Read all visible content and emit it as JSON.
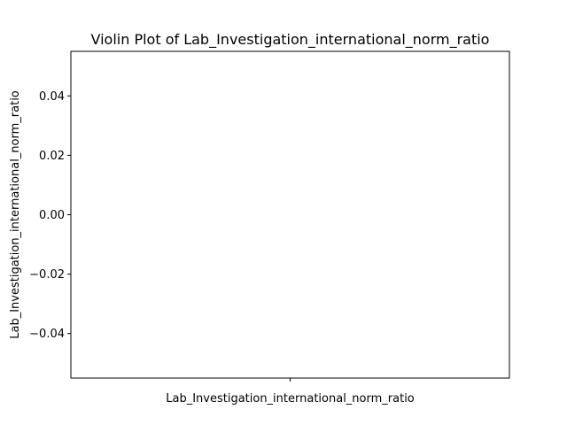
{
  "chart_data": {
    "type": "violin",
    "title": "Violin Plot of Lab_Investigation_international_norm_ratio",
    "xlabel": "Lab_Investigation_international_norm_ratio",
    "ylabel": "Lab_Investigation_international_norm_ratio",
    "ylim": [
      -0.055,
      0.055
    ],
    "y_ticks": [
      0.04,
      0.02,
      0.0,
      -0.02,
      -0.04
    ],
    "y_tick_labels": [
      "0.04",
      "0.02",
      "0.00",
      "−0.02",
      "−0.04"
    ],
    "categories": [
      ""
    ],
    "values": [],
    "grid": false,
    "legend": "none"
  }
}
